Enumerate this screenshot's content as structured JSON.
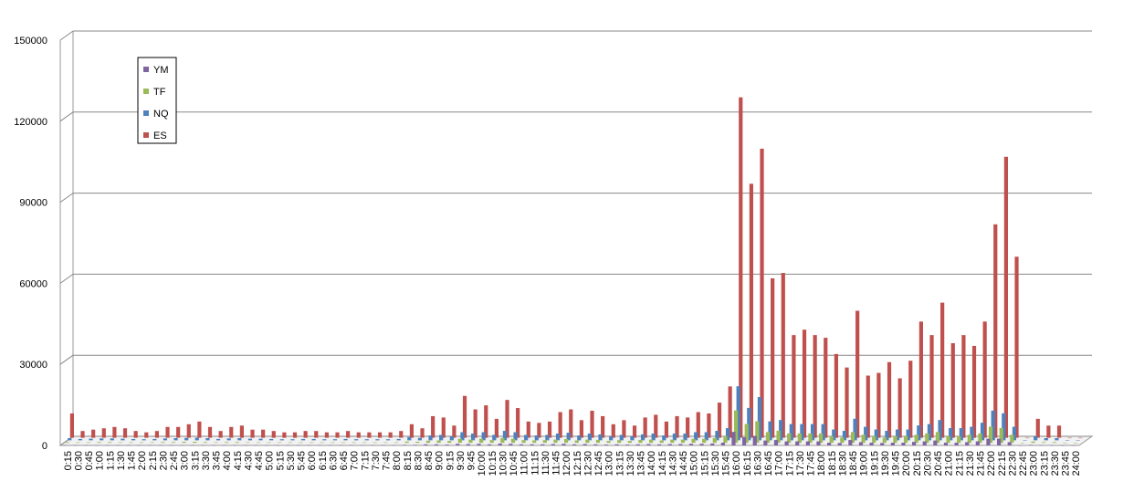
{
  "chart_data": {
    "type": "bar",
    "categories": [
      "0:15",
      "0:30",
      "0:45",
      "1:00",
      "1:15",
      "1:30",
      "1:45",
      "2:00",
      "2:15",
      "2:30",
      "2:45",
      "3:00",
      "3:15",
      "3:30",
      "3:45",
      "4:00",
      "4:15",
      "4:30",
      "4:45",
      "5:00",
      "5:15",
      "5:30",
      "5:45",
      "6:00",
      "6:15",
      "6:30",
      "6:45",
      "7:00",
      "7:15",
      "7:30",
      "7:45",
      "8:00",
      "8:15",
      "8:30",
      "8:45",
      "9:00",
      "9:15",
      "9:30",
      "9:45",
      "10:00",
      "10:15",
      "10:30",
      "10:45",
      "11:00",
      "11:15",
      "11:30",
      "11:45",
      "12:00",
      "12:15",
      "12:30",
      "12:45",
      "13:00",
      "13:15",
      "13:30",
      "13:45",
      "14:00",
      "14:15",
      "14:30",
      "14:45",
      "15:00",
      "15:15",
      "15:30",
      "15:45",
      "16:00",
      "16:15",
      "16:30",
      "16:45",
      "17:00",
      "17:15",
      "17:30",
      "17:45",
      "18:00",
      "18:15",
      "18:30",
      "18:45",
      "19:00",
      "19:15",
      "19:30",
      "19:45",
      "20:00",
      "20:15",
      "20:30",
      "20:45",
      "21:00",
      "21:15",
      "21:30",
      "21:45",
      "22:00",
      "22:15",
      "22:30",
      "22:45",
      "23:00",
      "23:15",
      "23:30",
      "23:45",
      "24:00"
    ],
    "series": [
      {
        "name": "YM",
        "color": "#8064a2",
        "values": [
          100,
          100,
          100,
          100,
          100,
          100,
          100,
          100,
          100,
          100,
          100,
          100,
          100,
          100,
          100,
          100,
          100,
          100,
          100,
          100,
          100,
          100,
          100,
          100,
          100,
          100,
          100,
          100,
          100,
          100,
          100,
          100,
          200,
          200,
          400,
          400,
          300,
          600,
          500,
          600,
          400,
          700,
          600,
          400,
          400,
          400,
          500,
          600,
          400,
          500,
          400,
          300,
          400,
          300,
          400,
          500,
          400,
          500,
          500,
          600,
          600,
          700,
          1000,
          5000,
          3000,
          3500,
          1800,
          2000,
          1500,
          1500,
          1500,
          1500,
          1000,
          900,
          2000,
          1200,
          1000,
          900,
          1000,
          1000,
          1300,
          1500,
          1800,
          1000,
          1000,
          1200,
          1500,
          2500,
          2500,
          1200,
          0,
          200,
          100,
          100,
          0,
          0
        ]
      },
      {
        "name": "TF",
        "color": "#9bbb59",
        "values": [
          300,
          200,
          200,
          300,
          300,
          200,
          200,
          200,
          200,
          300,
          300,
          400,
          400,
          300,
          200,
          300,
          300,
          200,
          200,
          200,
          200,
          200,
          200,
          200,
          200,
          200,
          200,
          200,
          200,
          200,
          200,
          200,
          500,
          400,
          800,
          900,
          700,
          1500,
          1200,
          1500,
          1000,
          1800,
          1500,
          1000,
          900,
          1000,
          1200,
          1400,
          900,
          1200,
          1100,
          700,
          1000,
          700,
          1100,
          1200,
          900,
          1200,
          1200,
          1500,
          1500,
          1800,
          2500,
          12000,
          7000,
          8000,
          4000,
          4500,
          3500,
          3500,
          3500,
          3500,
          2500,
          2000,
          4000,
          3000,
          2500,
          2000,
          2500,
          2500,
          3000,
          3500,
          4000,
          2500,
          2500,
          3000,
          3500,
          6000,
          5500,
          3000,
          0,
          500,
          300,
          300,
          0,
          0
        ]
      },
      {
        "name": "NQ",
        "color": "#4f81bd",
        "values": [
          800,
          500,
          600,
          700,
          700,
          600,
          500,
          400,
          500,
          700,
          800,
          900,
          1000,
          800,
          500,
          700,
          800,
          600,
          600,
          500,
          400,
          400,
          500,
          500,
          400,
          400,
          500,
          400,
          400,
          400,
          400,
          500,
          1200,
          900,
          1800,
          2000,
          1500,
          3000,
          2500,
          3000,
          2000,
          3500,
          3000,
          2000,
          1800,
          2000,
          2500,
          2800,
          1800,
          2500,
          2200,
          1500,
          2000,
          1500,
          2200,
          2500,
          1800,
          2500,
          2500,
          3000,
          3000,
          3500,
          4500,
          20000,
          12000,
          16000,
          7000,
          7500,
          6000,
          6000,
          6000,
          6000,
          4000,
          3500,
          8000,
          5000,
          4000,
          3500,
          4000,
          4000,
          5500,
          6000,
          7500,
          4500,
          4500,
          5000,
          6500,
          11000,
          10000,
          5000,
          0,
          1500,
          800,
          800,
          0,
          0
        ]
      },
      {
        "name": "ES",
        "color": "#c0504d",
        "values": [
          9000,
          2500,
          3000,
          3500,
          4000,
          3500,
          2500,
          2000,
          2500,
          4000,
          4000,
          5000,
          6000,
          4000,
          2500,
          4000,
          4500,
          3000,
          3000,
          2500,
          2000,
          2000,
          2500,
          2500,
          2000,
          2000,
          2500,
          2000,
          2000,
          2000,
          2000,
          2500,
          5000,
          3500,
          8000,
          7500,
          4500,
          15500,
          10500,
          12000,
          7000,
          14000,
          11000,
          6000,
          5500,
          6000,
          9500,
          10500,
          6500,
          10000,
          8000,
          5000,
          6500,
          4500,
          7500,
          8500,
          6000,
          8000,
          7500,
          9500,
          9000,
          13000,
          19000,
          126000,
          94000,
          107000,
          59000,
          61000,
          38000,
          40000,
          38000,
          37000,
          31000,
          26000,
          47000,
          23000,
          24000,
          28000,
          22000,
          28500,
          43000,
          38000,
          50000,
          35000,
          38000,
          34000,
          43000,
          79000,
          104000,
          67000,
          0,
          7000,
          4500,
          4500,
          0,
          0
        ]
      }
    ],
    "ylim": [
      0,
      150000
    ],
    "yticks": [
      0,
      30000,
      60000,
      90000,
      120000,
      150000
    ],
    "grid": true
  }
}
